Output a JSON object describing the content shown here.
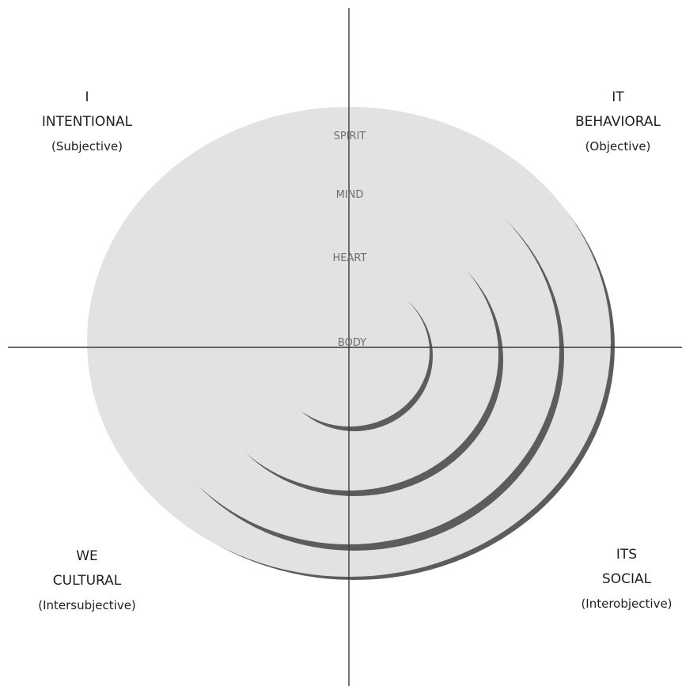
{
  "quadrants": {
    "upper_left": {
      "pronoun": "I",
      "name": "INTENTIONAL",
      "qualifier": "(Subjective)"
    },
    "upper_right": {
      "pronoun": "IT",
      "name": "BEHAVIORAL",
      "qualifier": "(Objective)"
    },
    "lower_left": {
      "pronoun": "WE",
      "name": "CULTURAL",
      "qualifier": "(Intersubjective)"
    },
    "lower_right": {
      "pronoun": "ITS",
      "name": "SOCIAL",
      "qualifier": "(Interobjective)"
    }
  },
  "rings": [
    "SPIRIT",
    "MIND",
    "HEART",
    "BODY"
  ],
  "colors": {
    "ring_fill": "#e2e2e2",
    "ring_shadow": "#5c5c5c",
    "axis": "#3a3a3a",
    "label_text": "#1e1e1e",
    "ring_text": "#6e6e6e"
  }
}
